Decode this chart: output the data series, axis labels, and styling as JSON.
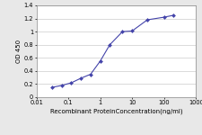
{
  "x": [
    0.031,
    0.063,
    0.125,
    0.25,
    0.5,
    1.0,
    2.0,
    5.0,
    10.0,
    30.0,
    100.0,
    200.0
  ],
  "y": [
    0.15,
    0.18,
    0.22,
    0.29,
    0.35,
    0.55,
    0.8,
    1.0,
    1.01,
    1.18,
    1.22,
    1.25
  ],
  "line_color": "#4444aa",
  "marker_color": "#4444aa",
  "marker_style": "D",
  "marker_size": 2.0,
  "xlabel": "Recombinant ProteinConcentration(ng/ml)",
  "ylabel": "OD 450",
  "xlim_log": [
    0.01,
    1000
  ],
  "ylim": [
    0,
    1.4
  ],
  "yticks": [
    0,
    0.2,
    0.4,
    0.6,
    0.8,
    1.0,
    1.2,
    1.4
  ],
  "xticks": [
    0.01,
    0.1,
    1,
    10,
    100,
    1000
  ],
  "xtick_labels": [
    "0.01",
    "0.1",
    "1",
    "10",
    "100",
    "1000"
  ],
  "label_fontsize": 5.0,
  "tick_fontsize": 4.8,
  "background_color": "#e8e8e8",
  "plot_bg_color": "#ffffff",
  "grid_color": "#cccccc"
}
